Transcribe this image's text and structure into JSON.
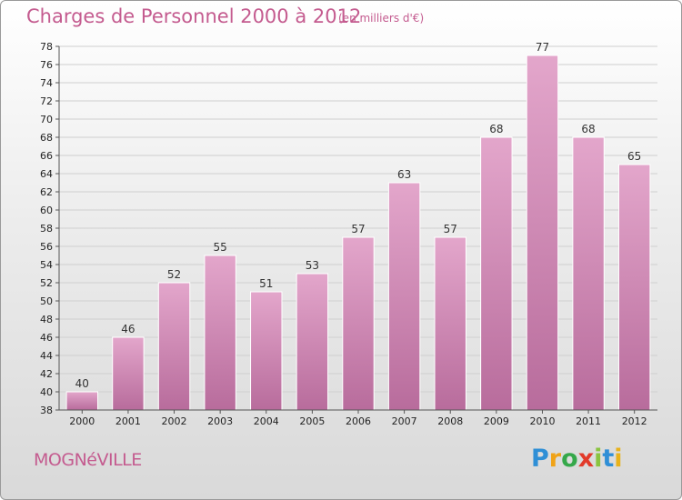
{
  "title": "Charges de Personnel 2000 à 2012",
  "subtitle": "(en milliers d'€)",
  "commune": "MOGNéVILLE",
  "logo": {
    "letters": [
      "P",
      "r",
      "o",
      "x",
      "i",
      "t",
      "i"
    ],
    "colors": [
      "#2f8fd6",
      "#f0a318",
      "#35a84a",
      "#e23a2a",
      "#8ac43f",
      "#2f8fd6",
      "#e8b21a"
    ]
  },
  "colors": {
    "bar": "#d68fba",
    "bar_dark": "#b06493",
    "text_accent": "#c45b8f"
  },
  "chart_data": {
    "type": "bar",
    "categories": [
      "2000",
      "2001",
      "2002",
      "2003",
      "2004",
      "2005",
      "2006",
      "2007",
      "2008",
      "2009",
      "2010",
      "2011",
      "2012"
    ],
    "values": [
      40,
      46,
      52,
      55,
      51,
      53,
      57,
      63,
      57,
      68,
      77,
      68,
      65
    ],
    "ylim": [
      38,
      78
    ],
    "yticks": [
      "38",
      "40",
      "42",
      "44",
      "46",
      "48",
      "50",
      "52",
      "54",
      "56",
      "58",
      "60",
      "62",
      "64",
      "66",
      "68",
      "70",
      "72",
      "74",
      "76",
      "78"
    ],
    "grid": true
  }
}
